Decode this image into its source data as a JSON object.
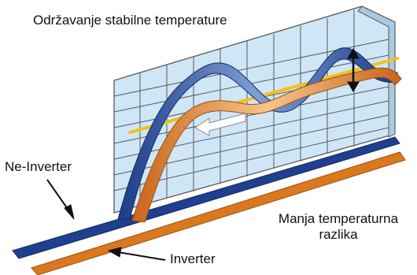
{
  "labels": {
    "title": "Održavanje stabilne temperature",
    "non_inverter": "Ne-Inverter",
    "inverter": "Inverter",
    "small_difference_line1": "Manja temperaturna",
    "small_difference_line2": "razlika"
  },
  "colors": {
    "grid_fill": "#cfe6f7",
    "grid_line": "#5a5a5a",
    "non_inverter_band": "#1f3f8f",
    "inverter_band": "#d9781f",
    "target_line": "#f2c21a",
    "text": "#111111"
  },
  "icons": {
    "direction_arrow": "white-left-arrow-icon",
    "amplitude_marker": "double-headed-vertical-arrow-icon"
  }
}
